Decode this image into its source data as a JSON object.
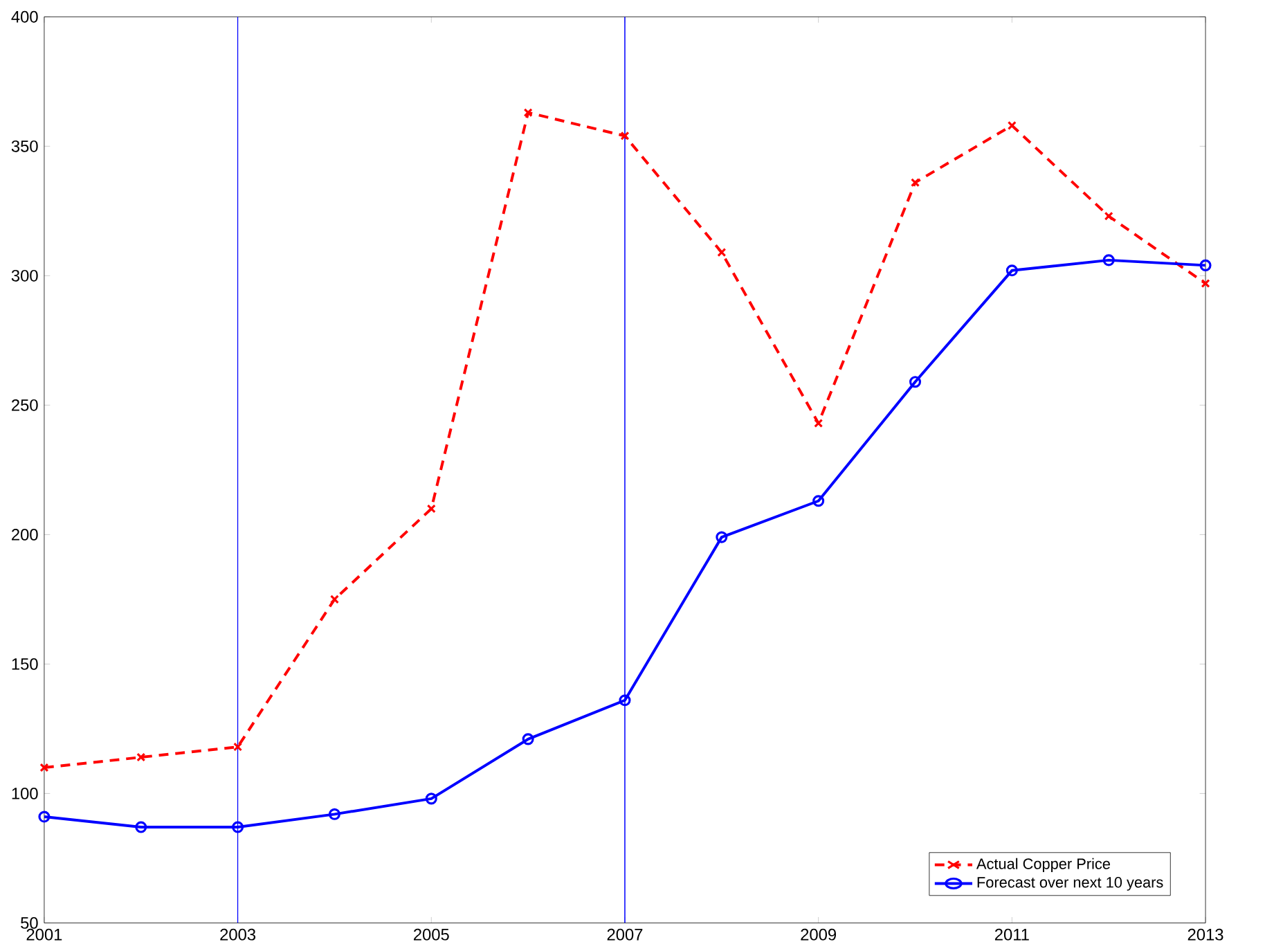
{
  "chart_data": {
    "type": "line",
    "x": [
      2001,
      2002,
      2003,
      2004,
      2005,
      2006,
      2007,
      2008,
      2009,
      2010,
      2011,
      2012,
      2013
    ],
    "series": [
      {
        "name": "Actual Copper Price",
        "color": "#ff0000",
        "marker": "cross",
        "line_style": "dashed",
        "values": [
          110,
          114,
          118,
          175,
          210,
          363,
          354,
          309,
          243,
          336,
          358,
          323,
          297
        ]
      },
      {
        "name": "Forecast over next 10 years",
        "color": "#0000ff",
        "marker": "circle",
        "line_style": "solid",
        "values": [
          91,
          87,
          87,
          92,
          98,
          121,
          136,
          199,
          213,
          259,
          302,
          306,
          304
        ]
      }
    ],
    "xlim": [
      2001,
      2013
    ],
    "xticks": [
      2001,
      2003,
      2005,
      2007,
      2009,
      2011,
      2013
    ],
    "ylim": [
      50,
      400
    ],
    "yticks": [
      50,
      100,
      150,
      200,
      250,
      300,
      350,
      400
    ],
    "ref_lines": [
      {
        "axis": "x",
        "value": 2003,
        "color": "#0000ff"
      },
      {
        "axis": "x",
        "value": 2007,
        "color": "#0000ff"
      }
    ],
    "grid": false,
    "legend": "bottom right"
  }
}
